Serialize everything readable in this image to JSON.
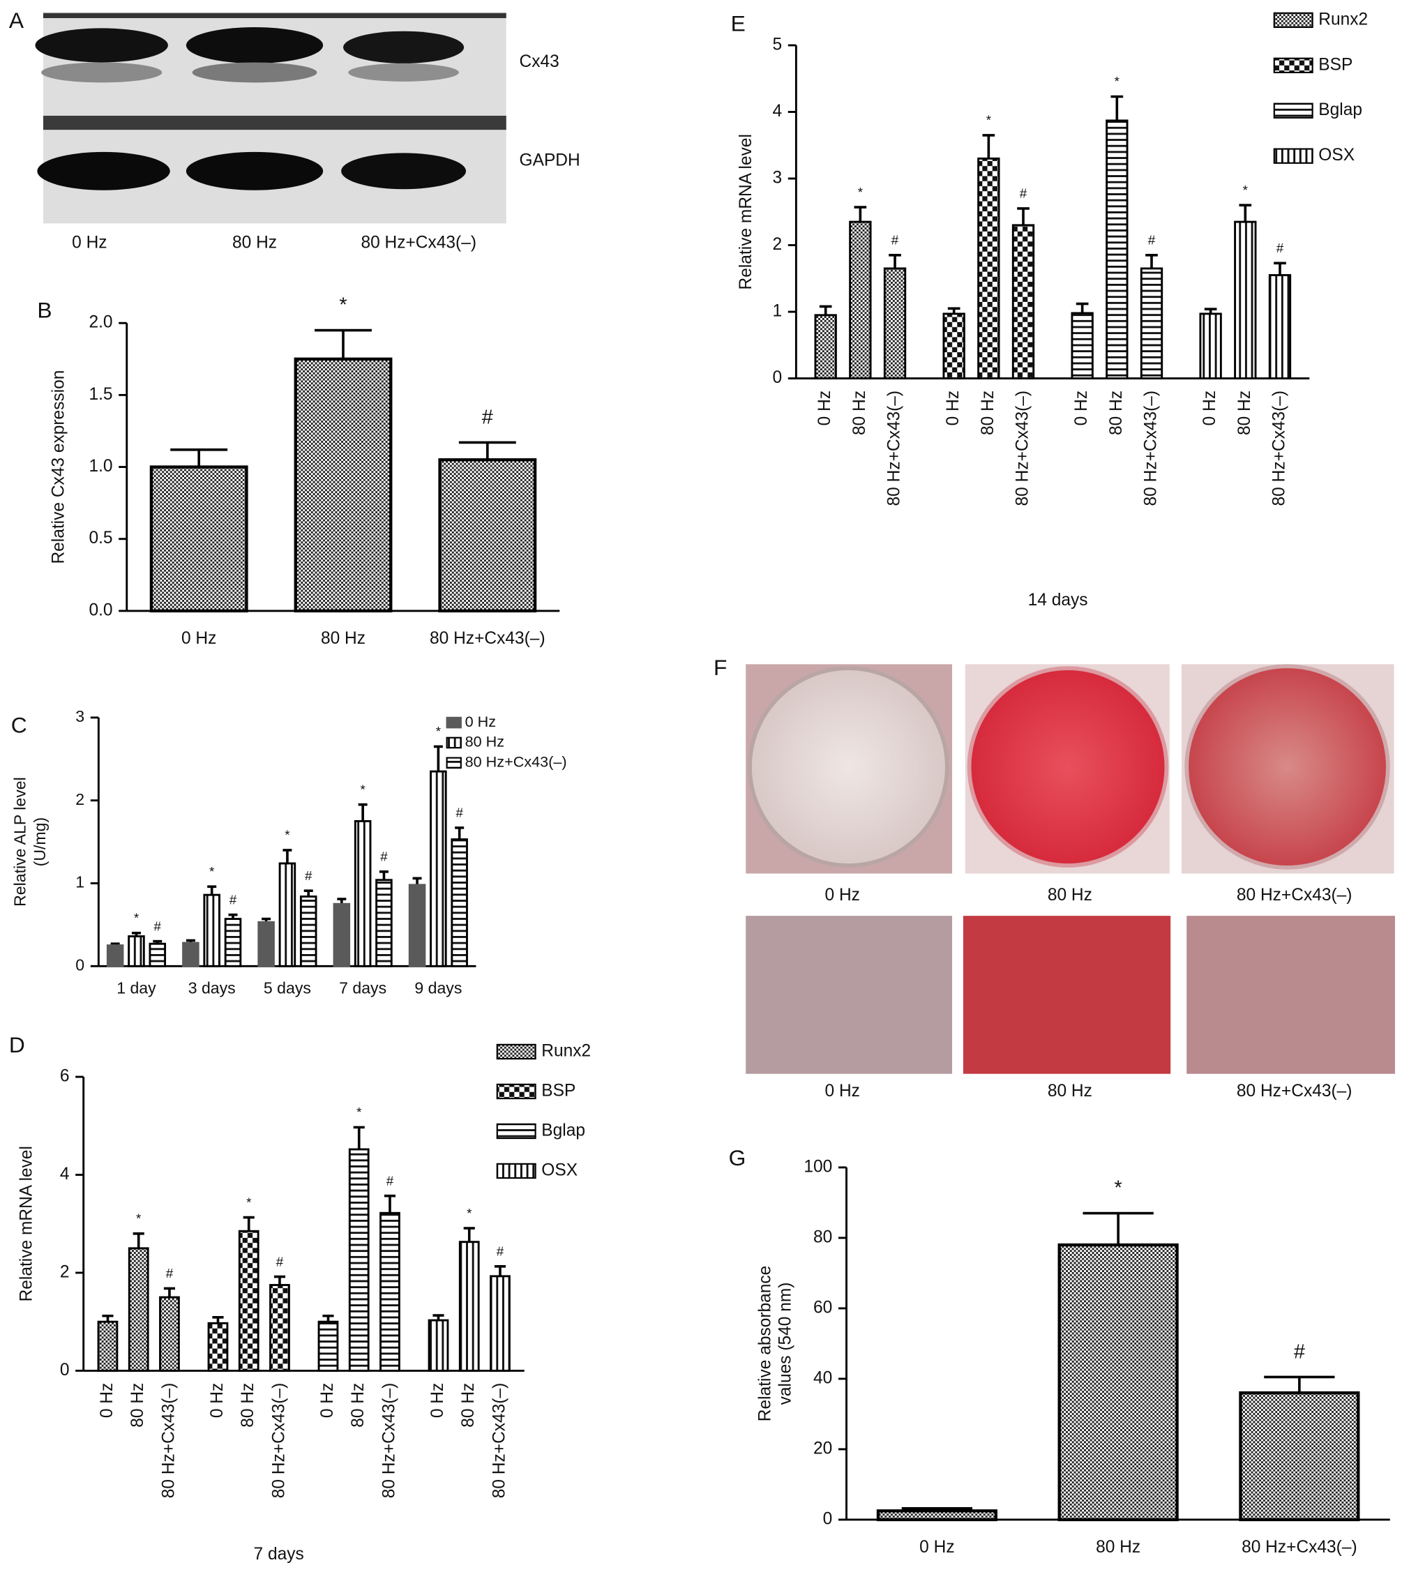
{
  "chart_data": [
    {
      "panel": "B",
      "type": "bar",
      "ylabel": [
        "Relative Cx43 expression"
      ],
      "categories": [
        "0 Hz",
        "80 Hz",
        "80 Hz+Cx43(–)"
      ],
      "values": [
        1.0,
        1.75,
        1.05
      ],
      "errors": [
        0.12,
        0.2,
        0.12
      ],
      "annotations": [
        null,
        "*",
        "#"
      ],
      "pattern": "checker",
      "color": "#000000",
      "ylim": [
        0,
        2.0
      ],
      "yticks": [
        {
          "value": 0,
          "label": "0.0"
        },
        {
          "value": 0.5,
          "label": "0.5"
        },
        {
          "value": 1,
          "label": "1.0"
        },
        {
          "value": 1.5,
          "label": "1.5"
        },
        {
          "value": 2,
          "label": "2.0"
        }
      ]
    },
    {
      "panel": "C",
      "type": "grouped_bar",
      "group_by": "categories",
      "ylabel": [
        "Relative ALP level",
        "(U/mg)"
      ],
      "categories": [
        "1 day",
        "3 days",
        "5 days",
        "7 days",
        "9 days"
      ],
      "series": [
        {
          "name": "0 Hz",
          "color": "#5a5a5a",
          "pattern": "solid",
          "values": [
            0.25,
            0.28,
            0.53,
            0.75,
            0.98
          ],
          "errors": [
            0.02,
            0.03,
            0.04,
            0.06,
            0.08
          ],
          "annotations": [
            null,
            null,
            null,
            null,
            null
          ]
        },
        {
          "name": "80 Hz",
          "color": "#000000",
          "pattern": "vstripe",
          "values": [
            0.36,
            0.86,
            1.24,
            1.75,
            2.35
          ],
          "errors": [
            0.04,
            0.1,
            0.16,
            0.2,
            0.3
          ],
          "annotations": [
            "*",
            "*",
            "*",
            "*",
            "*"
          ]
        },
        {
          "name": "80 Hz+Cx43(–)",
          "color": "#000000",
          "pattern": "hstripe",
          "values": [
            0.27,
            0.57,
            0.84,
            1.04,
            1.53
          ],
          "errors": [
            0.03,
            0.05,
            0.07,
            0.1,
            0.14
          ],
          "annotations": [
            "#",
            "#",
            "#",
            "#",
            "#"
          ]
        }
      ],
      "legend": "upper right",
      "ylim": [
        0,
        3
      ],
      "yticks": [
        0,
        1,
        2,
        3
      ]
    },
    {
      "panel": "D",
      "type": "grouped_bar",
      "group_by": "series",
      "ylabel": [
        "Relative mRNA level"
      ],
      "xlabel": "7 days",
      "categories": [
        "0 Hz",
        "80 Hz",
        "80 Hz+Cx43(–)"
      ],
      "series": [
        {
          "name": "Runx2",
          "color": "#000000",
          "pattern": "checker",
          "values": [
            1.0,
            2.5,
            1.5
          ],
          "errors": [
            0.12,
            0.3,
            0.18
          ],
          "annotations": [
            null,
            "*",
            "#"
          ]
        },
        {
          "name": "BSP",
          "color": "#000000",
          "pattern": "check-large",
          "values": [
            0.97,
            2.85,
            1.75
          ],
          "errors": [
            0.12,
            0.28,
            0.17
          ],
          "annotations": [
            null,
            "*",
            "#"
          ]
        },
        {
          "name": "Bglap",
          "color": "#000000",
          "pattern": "hstripe",
          "values": [
            1.0,
            4.52,
            3.22
          ],
          "errors": [
            0.12,
            0.45,
            0.35
          ],
          "annotations": [
            null,
            "*",
            "#"
          ]
        },
        {
          "name": "OSX",
          "color": "#000000",
          "pattern": "vstripe",
          "values": [
            1.03,
            2.63,
            1.93
          ],
          "errors": [
            0.1,
            0.28,
            0.2
          ],
          "annotations": [
            null,
            "*",
            "#"
          ]
        }
      ],
      "legend": "right",
      "ylim": [
        0,
        6
      ],
      "yticks": [
        0,
        2,
        4,
        6
      ]
    },
    {
      "panel": "E",
      "type": "grouped_bar",
      "group_by": "series",
      "ylabel": [
        "Relative mRNA level"
      ],
      "xlabel": "14 days",
      "categories": [
        "0 Hz",
        "80 Hz",
        "80 Hz+Cx43(–)"
      ],
      "series": [
        {
          "name": "Runx2",
          "color": "#000000",
          "pattern": "checker",
          "values": [
            0.95,
            2.35,
            1.65
          ],
          "errors": [
            0.13,
            0.22,
            0.2
          ],
          "annotations": [
            null,
            "*",
            "#"
          ]
        },
        {
          "name": "BSP",
          "color": "#000000",
          "pattern": "check-large",
          "values": [
            0.97,
            3.3,
            2.3
          ],
          "errors": [
            0.08,
            0.35,
            0.25
          ],
          "annotations": [
            null,
            "*",
            "#"
          ]
        },
        {
          "name": "Bglap",
          "color": "#000000",
          "pattern": "hstripe",
          "values": [
            0.98,
            3.87,
            1.65
          ],
          "errors": [
            0.14,
            0.36,
            0.2
          ],
          "annotations": [
            null,
            "*",
            "#"
          ]
        },
        {
          "name": "OSX",
          "color": "#000000",
          "pattern": "vstripe",
          "values": [
            0.97,
            2.35,
            1.55
          ],
          "errors": [
            0.07,
            0.25,
            0.18
          ],
          "annotations": [
            null,
            "*",
            "#"
          ]
        }
      ],
      "legend": "right",
      "ylim": [
        0,
        5
      ],
      "yticks": [
        0,
        1,
        2,
        3,
        4,
        5
      ]
    },
    {
      "panel": "G",
      "type": "bar",
      "ylabel": [
        "Relative absorbance",
        "values (540 nm)"
      ],
      "categories": [
        "0 Hz",
        "80 Hz",
        "80 Hz+Cx43(–)"
      ],
      "values": [
        2.5,
        78,
        36
      ],
      "errors": [
        0.7,
        9,
        4.5
      ],
      "annotations": [
        null,
        "*",
        "#"
      ],
      "pattern": "checker",
      "color": "#000000",
      "ylim": [
        0,
        100
      ],
      "yticks": [
        0,
        20,
        40,
        60,
        80,
        100
      ]
    }
  ],
  "blot": {
    "panel": "A",
    "bands": [
      "Cx43",
      "GAPDH"
    ],
    "lanes": [
      "0 Hz",
      "80 Hz",
      "80 Hz+Cx43(–)"
    ]
  },
  "staining": {
    "panel": "F",
    "rows": [
      [
        "0 Hz",
        "80 Hz",
        "80 Hz+Cx43(–)"
      ],
      [
        "0 Hz",
        "80 Hz",
        "80 Hz+Cx43(–)"
      ]
    ]
  }
}
